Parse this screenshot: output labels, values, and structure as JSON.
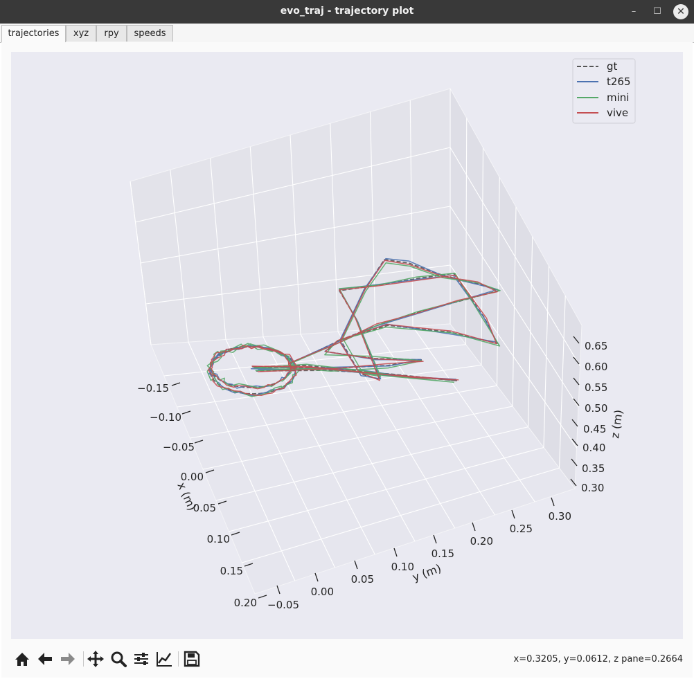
{
  "window": {
    "title": "evo_traj - trajectory plot",
    "controls": [
      "–",
      "☐",
      "✕"
    ]
  },
  "tabs": [
    "trajectories",
    "xyz",
    "rpy",
    "speeds"
  ],
  "active_tab": "trajectories",
  "chart_data": {
    "type": "line",
    "projection": "3d",
    "xlabel": "x (m)",
    "ylabel": "y (m)",
    "zlabel": "z (m)",
    "x_ticks": [
      "−0.15",
      "−0.10",
      "−0.05",
      "0.00",
      "0.05",
      "0.10",
      "0.15",
      "0.20"
    ],
    "y_ticks": [
      "−0.05",
      "0.00",
      "0.05",
      "0.10",
      "0.15",
      "0.20",
      "0.25",
      "0.30"
    ],
    "z_ticks": [
      "0.65",
      "0.60",
      "0.55",
      "0.50",
      "0.45",
      "0.40",
      "0.35",
      "0.30"
    ],
    "legend": [
      {
        "name": "gt",
        "color": "#555555",
        "dash": true
      },
      {
        "name": "t265",
        "color": "#4c72b0",
        "dash": false
      },
      {
        "name": "mini",
        "color": "#55a868",
        "dash": false
      },
      {
        "name": "vive",
        "color": "#c44e52",
        "dash": false
      }
    ],
    "legend_position": "top-right",
    "grid": true
  },
  "toolbar": {
    "buttons": [
      "home-icon",
      "back-icon",
      "forward-icon",
      "pan-icon",
      "zoom-icon",
      "configure-icon",
      "edit-axis-icon",
      "save-icon"
    ],
    "status": "x=0.3205, y=0.0612, z pane=0.2664"
  }
}
